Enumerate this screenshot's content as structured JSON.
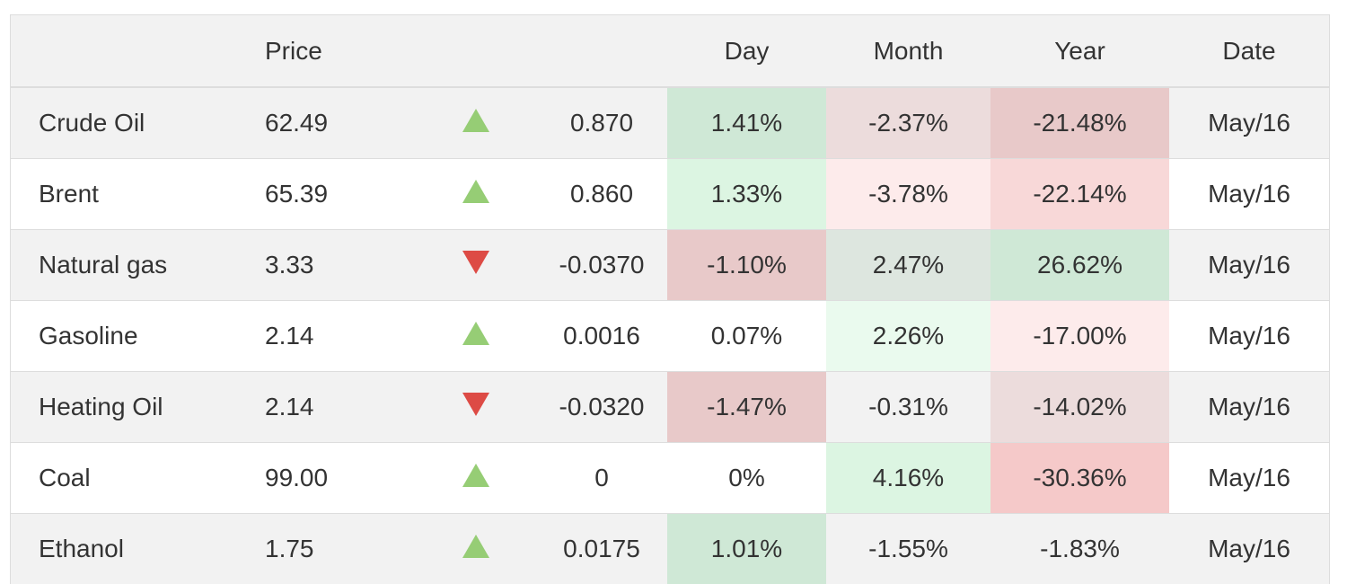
{
  "headers": {
    "name": "",
    "price": "Price",
    "arrow": "",
    "change": "",
    "day": "Day",
    "month": "Month",
    "year": "Year",
    "date": "Date"
  },
  "rows": [
    {
      "name": "Crude Oil",
      "price": "62.49",
      "direction": "up",
      "change": "0.870",
      "day": "1.41%",
      "month": "-2.37%",
      "year": "-21.48%",
      "date": "May/16",
      "colors": {
        "day": "#cfe8d6",
        "month": "#ecdcdc",
        "year": "#e8c9c9"
      }
    },
    {
      "name": "Brent",
      "price": "65.39",
      "direction": "up",
      "change": "0.860",
      "day": "1.33%",
      "month": "-3.78%",
      "year": "-22.14%",
      "date": "May/16",
      "colors": {
        "day": "#dcf5e2",
        "month": "#fdebeb",
        "year": "#f8d8d8"
      }
    },
    {
      "name": "Natural gas",
      "price": "3.33",
      "direction": "down",
      "change": "-0.0370",
      "day": "-1.10%",
      "month": "2.47%",
      "year": "26.62%",
      "date": "May/16",
      "colors": {
        "day": "#e8c9c9",
        "month": "#dde6df",
        "year": "#cfe8d6"
      }
    },
    {
      "name": "Gasoline",
      "price": "2.14",
      "direction": "up",
      "change": "0.0016",
      "day": "0.07%",
      "month": "2.26%",
      "year": "-17.00%",
      "date": "May/16",
      "colors": {
        "day": "#ffffff",
        "month": "#eafaee",
        "year": "#fdebeb"
      }
    },
    {
      "name": "Heating Oil",
      "price": "2.14",
      "direction": "down",
      "change": "-0.0320",
      "day": "-1.47%",
      "month": "-0.31%",
      "year": "-14.02%",
      "date": "May/16",
      "colors": {
        "day": "#e8c9c9",
        "month": "#f2f2f2",
        "year": "#ecdcdc"
      }
    },
    {
      "name": "Coal",
      "price": "99.00",
      "direction": "up",
      "change": "0",
      "day": "0%",
      "month": "4.16%",
      "year": "-30.36%",
      "date": "May/16",
      "colors": {
        "day": "#ffffff",
        "month": "#dcf5e2",
        "year": "#f5c9c9"
      }
    },
    {
      "name": "Ethanol",
      "price": "1.75",
      "direction": "up",
      "change": "0.0175",
      "day": "1.01%",
      "month": "-1.55%",
      "year": "-1.83%",
      "date": "May/16",
      "colors": {
        "day": "#cfe8d6",
        "month": "#f2f2f2",
        "year": "#f2f2f2"
      }
    }
  ],
  "icons": {
    "up": "triangle-up-icon",
    "down": "triangle-down-icon"
  },
  "arrow_colors": {
    "up": "#96cd75",
    "down": "#dd4b45"
  }
}
